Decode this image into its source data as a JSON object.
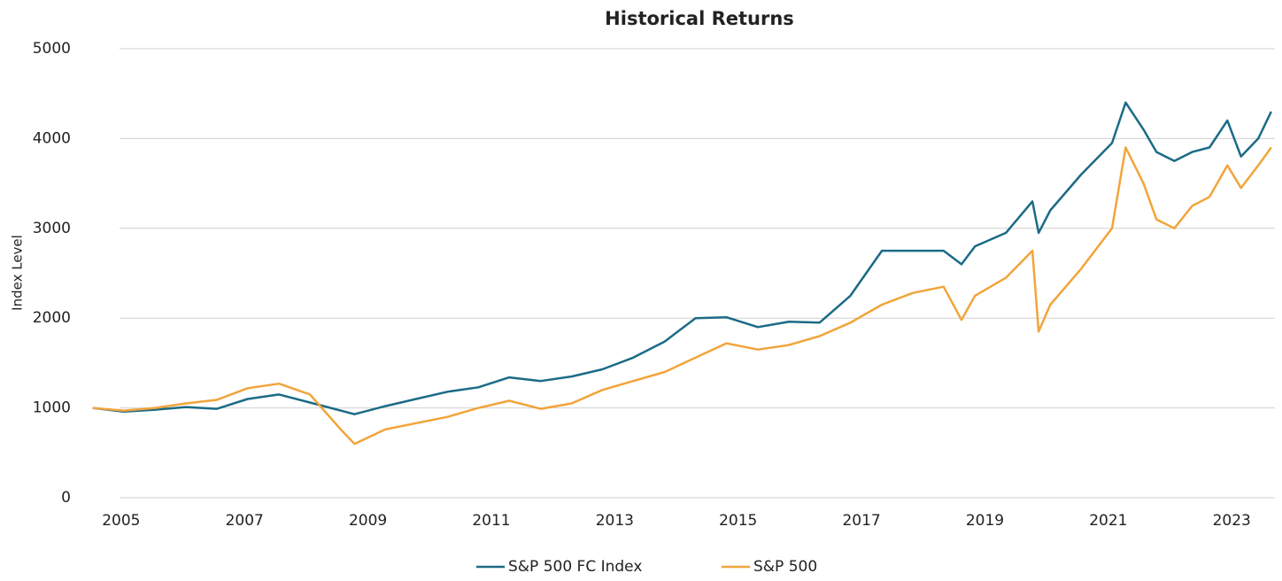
{
  "chart_data": {
    "type": "line",
    "title": "Historical Returns",
    "y_label": "Index Level",
    "x": [
      2004.54,
      2005.04,
      2005.55,
      2006.05,
      2006.55,
      2007.05,
      2007.56,
      2008.06,
      2008.56,
      2008.78,
      2009.28,
      2009.78,
      2010.29,
      2010.79,
      2011.29,
      2011.8,
      2012.3,
      2012.8,
      2013.3,
      2013.81,
      2014.31,
      2014.81,
      2015.32,
      2015.82,
      2016.32,
      2016.82,
      2017.33,
      2017.83,
      2018.33,
      2018.62,
      2018.84,
      2019.34,
      2019.77,
      2019.87,
      2020.06,
      2020.56,
      2021.06,
      2021.28,
      2021.57,
      2021.78,
      2022.07,
      2022.36,
      2022.64,
      2022.93,
      2023.15,
      2023.43,
      2023.64
    ],
    "series": [
      {
        "name": "S&P 500 FC Index",
        "color": "#1b6b86",
        "values": [
          1000,
          960,
          980,
          1010,
          990,
          1100,
          1150,
          1060,
          970,
          930,
          1020,
          1100,
          1180,
          1230,
          1340,
          1300,
          1350,
          1430,
          1560,
          1740,
          2000,
          2010,
          1900,
          1960,
          1950,
          2250,
          2750,
          2750,
          2750,
          2600,
          2800,
          2950,
          3300,
          2950,
          3200,
          3600,
          3950,
          4400,
          4100,
          3850,
          3750,
          3850,
          3900,
          4200,
          3800,
          4000,
          4300
        ]
      },
      {
        "name": "S&P 500",
        "color": "#f2a43a",
        "values": [
          1000,
          970,
          1000,
          1050,
          1090,
          1220,
          1270,
          1150,
          760,
          600,
          760,
          830,
          900,
          1000,
          1080,
          990,
          1050,
          1200,
          1300,
          1400,
          1560,
          1720,
          1650,
          1700,
          1800,
          1950,
          2150,
          2280,
          2350,
          1980,
          2250,
          2450,
          2750,
          1850,
          2150,
          2550,
          3000,
          3900,
          3500,
          3100,
          3000,
          3250,
          3350,
          3700,
          3450,
          3700,
          3900
        ]
      }
    ],
    "xlim": [
      2004.5,
      2023.7
    ],
    "xticks": [
      2005,
      2007,
      2009,
      2011,
      2013,
      2015,
      2017,
      2019,
      2021,
      2023
    ],
    "ylim": [
      0,
      5000
    ],
    "yticks": [
      0,
      1000,
      2000,
      3000,
      4000,
      5000
    ],
    "grid": true,
    "legend": "bottom"
  }
}
